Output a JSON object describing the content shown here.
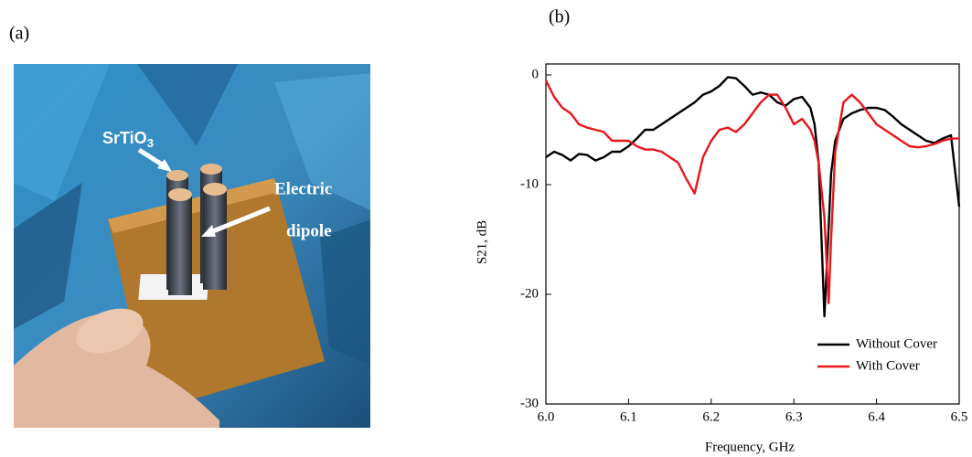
{
  "figure": {
    "panel_a": {
      "label": "(a)",
      "annotation_1": {
        "text": "SrTiO",
        "subscript": "3"
      },
      "annotation_2": {
        "line_1": "Electric",
        "line_2": "dipole"
      }
    }
  },
  "chart_data": {
    "type": "line",
    "panel_label": "(b)",
    "x_label": "Frequency, GHz",
    "y_label": "S21, dB",
    "xlim": [
      6.0,
      6.5
    ],
    "xticks": [
      {
        "value": 6.0,
        "label": "6.0"
      },
      6.1,
      6.2,
      6.3,
      6.4,
      6.5
    ],
    "ylim": [
      -30,
      1
    ],
    "yticks": [
      -30,
      -20,
      -10,
      0
    ],
    "x": [
      6.0,
      6.01,
      6.02,
      6.03,
      6.04,
      6.05,
      6.06,
      6.07,
      6.08,
      6.09,
      6.1,
      6.11,
      6.12,
      6.13,
      6.14,
      6.15,
      6.16,
      6.17,
      6.18,
      6.19,
      6.2,
      6.21,
      6.22,
      6.23,
      6.24,
      6.25,
      6.26,
      6.27,
      6.28,
      6.29,
      6.3,
      6.31,
      6.32,
      6.325,
      6.33,
      6.337,
      6.342,
      6.345,
      6.35,
      6.36,
      6.37,
      6.38,
      6.39,
      6.4,
      6.41,
      6.42,
      6.43,
      6.44,
      6.45,
      6.46,
      6.47,
      6.48,
      6.49,
      6.5
    ],
    "series": [
      {
        "name": "Without Cover",
        "color": "#000000",
        "values": [
          -7.5,
          -7.0,
          -7.3,
          -7.8,
          -7.2,
          -7.3,
          -7.8,
          -7.5,
          -7.0,
          -7.0,
          -6.5,
          -5.8,
          -5.0,
          -5.0,
          -4.5,
          -4.0,
          -3.5,
          -3.0,
          -2.5,
          -1.8,
          -1.5,
          -1.0,
          -0.2,
          -0.3,
          -1.0,
          -1.8,
          -1.6,
          -1.8,
          -2.5,
          -2.8,
          -2.2,
          -2.0,
          -3.0,
          -4.5,
          -8,
          -22,
          -14,
          -9,
          -6,
          -4,
          -3.5,
          -3.2,
          -3.0,
          -3.0,
          -3.2,
          -3.8,
          -4.5,
          -5.0,
          -5.5,
          -6.0,
          -6.2,
          -5.8,
          -5.5,
          -12
        ]
      },
      {
        "name": "With Cover",
        "color": "#e8161b",
        "values": [
          -0.5,
          -2.0,
          -3.0,
          -3.5,
          -4.5,
          -4.8,
          -5.0,
          -5.2,
          -6.0,
          -6.0,
          -6.0,
          -6.5,
          -6.8,
          -6.8,
          -7.0,
          -7.5,
          -8.0,
          -9.5,
          -10.8,
          -7.5,
          -6.0,
          -5.0,
          -4.8,
          -5.2,
          -4.5,
          -3.5,
          -2.5,
          -1.8,
          -1.8,
          -3.0,
          -4.5,
          -4.0,
          -5.0,
          -6.0,
          -8,
          -13,
          -20.8,
          -15,
          -7,
          -2.5,
          -1.8,
          -2.5,
          -3.5,
          -4.5,
          -5.0,
          -5.5,
          -6.0,
          -6.5,
          -6.6,
          -6.5,
          -6.3,
          -6.0,
          -5.8,
          -5.8
        ]
      }
    ],
    "legend": "lower right"
  }
}
